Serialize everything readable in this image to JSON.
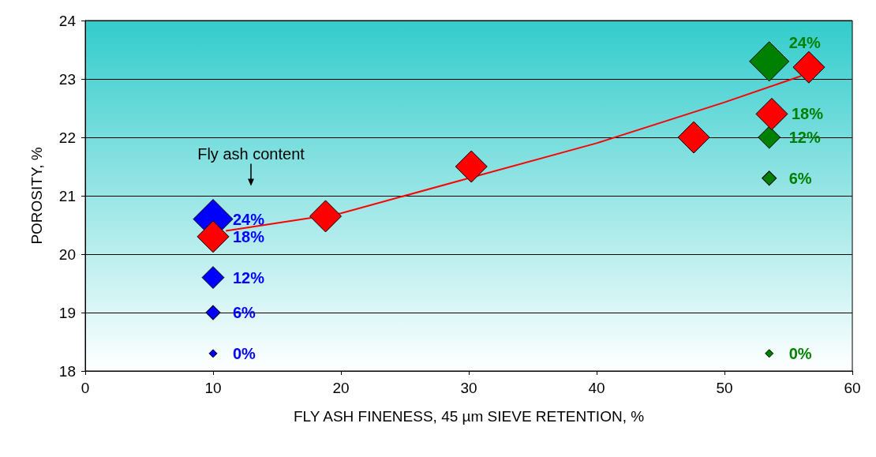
{
  "chart_data": {
    "type": "bubble",
    "xlabel": "FLY ASH FINENESS, 45 µm SIEVE RETENTION, %",
    "ylabel": "POROSITY, %",
    "xlim": [
      0,
      60
    ],
    "xticks": [
      0,
      10,
      20,
      30,
      40,
      50,
      60
    ],
    "ylim": [
      18,
      24
    ],
    "yticks": [
      18,
      19,
      20,
      21,
      22,
      23,
      24
    ],
    "grid": "y",
    "marker": "diamond",
    "series": [
      {
        "color": "#0000ff",
        "x": [
          10,
          10,
          10,
          10
        ],
        "values": [
          18.3,
          19.0,
          19.6,
          20.6
        ],
        "sizes": [
          0.04,
          0.13,
          0.31,
          1
        ]
      },
      {
        "color": "#008000",
        "x": [
          53.5,
          53.5,
          53.5,
          53.5
        ],
        "values": [
          18.3,
          21.3,
          22.0,
          23.3
        ],
        "sizes": [
          0.04,
          0.13,
          0.31,
          1
        ]
      },
      {
        "type": "line",
        "marker": "none",
        "color": "#ff0000",
        "x": [
          11,
          20,
          30,
          40,
          50,
          56
        ],
        "values": [
          20.4,
          20.7,
          21.3,
          21.9,
          22.6,
          23.05
        ]
      },
      {
        "type": "scatter",
        "color": "#ff0000",
        "x": [
          10,
          18.8,
          30.2,
          47.6,
          53.7,
          56.6
        ],
        "values": [
          20.3,
          20.65,
          21.5,
          22.0,
          22.4,
          23.2
        ]
      }
    ],
    "annotations": [
      "Fly ash content",
      {
        "text": "0%",
        "x": 10,
        "y": 18.3
      },
      {
        "text": "6%",
        "x": 10,
        "y": 19.0
      },
      {
        "text": "12%",
        "x": 10,
        "y": 19.6
      },
      {
        "text": "18%",
        "x": 10,
        "y": 20.3
      },
      {
        "text": "24%",
        "x": 10,
        "y": 20.6
      },
      {
        "text": "0%",
        "x": 53.5,
        "y": 18.3
      },
      {
        "text": "6%",
        "x": 53.5,
        "y": 21.3
      },
      {
        "text": "12%",
        "x": 53.5,
        "y": 22.0
      },
      {
        "text": "18%",
        "x": 53.7,
        "y": 22.4
      },
      {
        "text": "24%",
        "x": 53.5,
        "y": 23.3
      }
    ]
  }
}
